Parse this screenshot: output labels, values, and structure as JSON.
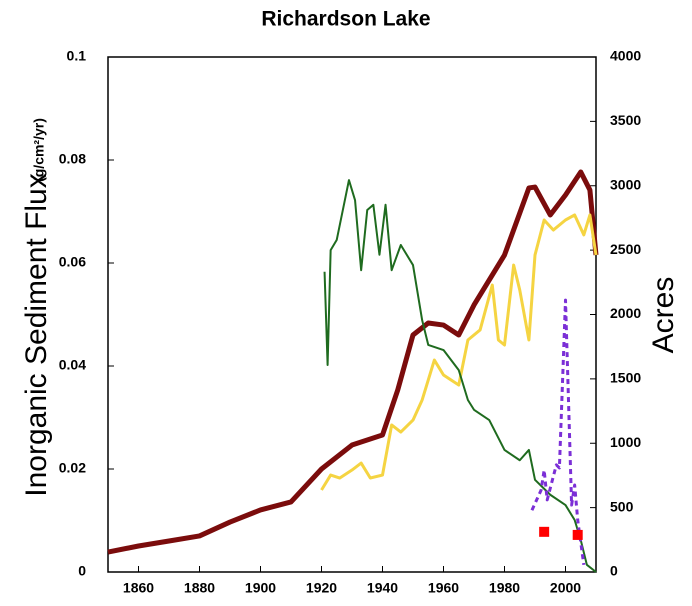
{
  "chart_data": {
    "type": "line",
    "title": "Richardson Lake",
    "ylabel": "Inorganic Sediment Flux",
    "ylabel_unit": "(g/cm²/yr)",
    "y2label": "Acres",
    "xlim": [
      1850,
      2010
    ],
    "xticks": [
      1860,
      1880,
      1900,
      1920,
      1940,
      1960,
      1980,
      2000
    ],
    "ylim": [
      0,
      0.1
    ],
    "yticks": [
      0,
      0.02,
      0.04,
      0.06,
      0.08,
      0.1
    ],
    "y2lim": [
      0,
      4000
    ],
    "y2ticks": [
      0,
      500,
      1000,
      1500,
      2000,
      2500,
      3000,
      3500,
      4000
    ],
    "series": [
      {
        "color": "#7b0c0c",
        "axis": "y2",
        "width": 5,
        "x": [
          1850,
          1860,
          1870,
          1880,
          1890,
          1900,
          1910,
          1920,
          1930,
          1940,
          1945,
          1950,
          1955,
          1960,
          1965,
          1970,
          1980,
          1988,
          1990,
          1995,
          2000,
          2005,
          2008,
          2010
        ],
        "values": [
          155,
          202,
          241,
          280,
          388,
          482,
          544,
          800,
          986,
          1064,
          1414,
          1841,
          1934,
          1918,
          1841,
          2074,
          2462,
          2983,
          2990,
          2773,
          2928,
          3107,
          2967,
          2462
        ]
      },
      {
        "color": "#f5d442",
        "axis": "y2",
        "width": 3,
        "x": [
          1920,
          1923,
          1926,
          1930,
          1933,
          1936,
          1940,
          1943,
          1946,
          1950,
          1953,
          1957,
          1960,
          1965,
          1968,
          1972,
          1976,
          1978,
          1980,
          1983,
          1985,
          1988,
          1990,
          1993,
          1996,
          2000,
          2003,
          2006,
          2008,
          2010
        ],
        "values": [
          637,
          753,
          730,
          792,
          846,
          730,
          753,
          1142,
          1087,
          1180,
          1336,
          1646,
          1530,
          1452,
          1802,
          1880,
          2229,
          1802,
          1763,
          2384,
          2190,
          1802,
          2462,
          2734,
          2656,
          2734,
          2773,
          2618,
          2773,
          2462
        ]
      },
      {
        "color": "#1f6b1f",
        "axis": "y",
        "width": 2,
        "x": [
          1921,
          1922,
          1923,
          1925,
          1928,
          1929,
          1931,
          1933,
          1935,
          1937,
          1939,
          1941,
          1943,
          1946,
          1950,
          1953,
          1955,
          1960,
          1965,
          1968,
          1970,
          1975,
          1980,
          1985,
          1988,
          1990,
          1995,
          2000,
          2003,
          2005,
          2007,
          2010
        ],
        "values": [
          0.0583,
          0.0402,
          0.0625,
          0.0645,
          0.0732,
          0.0761,
          0.0722,
          0.0586,
          0.0703,
          0.0713,
          0.0616,
          0.0713,
          0.0586,
          0.0635,
          0.0596,
          0.0489,
          0.0441,
          0.0431,
          0.0392,
          0.0334,
          0.0315,
          0.0295,
          0.0237,
          0.0217,
          0.0237,
          0.0179,
          0.015,
          0.013,
          0.0101,
          0.0062,
          0.0014,
          0
        ]
      },
      {
        "color": "#7b2fd6",
        "axis": "y",
        "width": 3,
        "dashed": true,
        "x": [
          1989,
          1992,
          1993,
          1994,
          1997,
          1998,
          2000,
          2002,
          2003,
          2004,
          2006
        ],
        "values": [
          0.012,
          0.0159,
          0.0198,
          0.014,
          0.0208,
          0.0202,
          0.0528,
          0.013,
          0.0169,
          0.0101,
          0.0014
        ]
      },
      {
        "color": "#ff0000",
        "axis": "y",
        "marker": "square",
        "x": [
          1993,
          2004
        ],
        "values": [
          0.0078,
          0.0072
        ]
      }
    ]
  }
}
